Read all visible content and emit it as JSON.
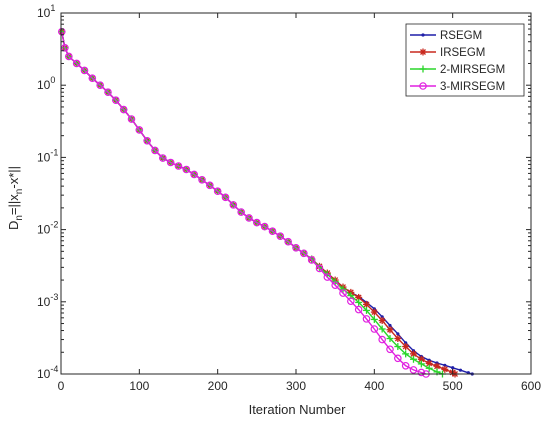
{
  "chart_data": {
    "type": "line",
    "title": "",
    "xlabel": "Iteration Number",
    "ylabel": "D_n=||x_n-x*||",
    "ylabel_parts": {
      "main": "D",
      "sub1": "n",
      "mid": "=||x",
      "sub2": "n",
      "tail": "-x*||"
    },
    "xlim": [
      0,
      600
    ],
    "ylim": [
      0.0001,
      10
    ],
    "yscale": "log",
    "grid": false,
    "legend_position": "top-right",
    "x_ticks": [
      0,
      100,
      200,
      300,
      400,
      500,
      600
    ],
    "x_tick_labels": [
      "0",
      "100",
      "200",
      "300",
      "400",
      "500",
      "600"
    ],
    "y_ticks": [
      0.0001,
      0.001,
      0.01,
      0.1,
      1,
      10
    ],
    "y_tick_labels": [
      {
        "base": "10",
        "exp": "-4"
      },
      {
        "base": "10",
        "exp": "-3"
      },
      {
        "base": "10",
        "exp": "-2"
      },
      {
        "base": "10",
        "exp": "-1"
      },
      {
        "base": "10",
        "exp": "0"
      },
      {
        "base": "10",
        "exp": "1"
      }
    ],
    "series": [
      {
        "name": "RSEGM",
        "color": "#1f1fa8",
        "marker": "dot",
        "x": [
          1,
          5,
          10,
          20,
          30,
          40,
          50,
          60,
          70,
          80,
          90,
          100,
          110,
          120,
          130,
          140,
          150,
          160,
          170,
          180,
          190,
          200,
          210,
          220,
          230,
          240,
          250,
          260,
          270,
          280,
          290,
          300,
          310,
          320,
          330,
          340,
          350,
          360,
          370,
          380,
          390,
          400,
          410,
          420,
          430,
          440,
          450,
          460,
          470,
          480,
          490,
          500,
          510,
          520,
          525
        ],
        "y": [
          5.5,
          3.3,
          2.5,
          2.0,
          1.6,
          1.25,
          1.0,
          0.8,
          0.62,
          0.46,
          0.34,
          0.24,
          0.17,
          0.125,
          0.098,
          0.085,
          0.076,
          0.068,
          0.058,
          0.049,
          0.041,
          0.034,
          0.028,
          0.022,
          0.0175,
          0.0145,
          0.0125,
          0.011,
          0.0095,
          0.0081,
          0.0068,
          0.0056,
          0.0047,
          0.0039,
          0.0031,
          0.0025,
          0.002,
          0.0016,
          0.00135,
          0.00118,
          0.00098,
          0.0008,
          0.00062,
          0.00047,
          0.00036,
          0.00027,
          0.00021,
          0.000175,
          0.000155,
          0.000142,
          0.000132,
          0.000122,
          0.000113,
          0.000104,
          0.0001
        ]
      },
      {
        "name": "IRSEGM",
        "color": "#c8281e",
        "marker": "star",
        "x": [
          1,
          5,
          10,
          20,
          30,
          40,
          50,
          60,
          70,
          80,
          90,
          100,
          110,
          120,
          130,
          140,
          150,
          160,
          170,
          180,
          190,
          200,
          210,
          220,
          230,
          240,
          250,
          260,
          270,
          280,
          290,
          300,
          310,
          320,
          330,
          340,
          350,
          360,
          370,
          380,
          390,
          400,
          410,
          420,
          430,
          440,
          450,
          460,
          470,
          480,
          490,
          500,
          503
        ],
        "y": [
          5.5,
          3.3,
          2.5,
          2.0,
          1.6,
          1.25,
          1.0,
          0.8,
          0.62,
          0.46,
          0.34,
          0.24,
          0.17,
          0.125,
          0.098,
          0.085,
          0.076,
          0.068,
          0.058,
          0.049,
          0.041,
          0.034,
          0.028,
          0.022,
          0.0175,
          0.0145,
          0.0125,
          0.011,
          0.0095,
          0.0081,
          0.0068,
          0.0056,
          0.0047,
          0.0039,
          0.0031,
          0.0025,
          0.002,
          0.0016,
          0.00135,
          0.00115,
          0.00092,
          0.00072,
          0.00055,
          0.00041,
          0.00031,
          0.00024,
          0.00019,
          0.00016,
          0.00014,
          0.000128,
          0.000116,
          0.000105,
          0.0001
        ]
      },
      {
        "name": "2-MIRSEGM",
        "color": "#2bd62b",
        "marker": "plus",
        "x": [
          1,
          5,
          10,
          20,
          30,
          40,
          50,
          60,
          70,
          80,
          90,
          100,
          110,
          120,
          130,
          140,
          150,
          160,
          170,
          180,
          190,
          200,
          210,
          220,
          230,
          240,
          250,
          260,
          270,
          280,
          290,
          300,
          310,
          320,
          330,
          340,
          350,
          360,
          370,
          380,
          390,
          400,
          410,
          420,
          430,
          440,
          450,
          460,
          470,
          480,
          487
        ],
        "y": [
          5.5,
          3.3,
          2.5,
          2.0,
          1.6,
          1.25,
          1.0,
          0.8,
          0.62,
          0.46,
          0.34,
          0.24,
          0.17,
          0.125,
          0.098,
          0.085,
          0.076,
          0.068,
          0.058,
          0.049,
          0.041,
          0.034,
          0.028,
          0.022,
          0.0175,
          0.0145,
          0.0125,
          0.011,
          0.0095,
          0.0081,
          0.0068,
          0.0056,
          0.0047,
          0.0039,
          0.003,
          0.0024,
          0.0019,
          0.0015,
          0.00122,
          0.00098,
          0.00076,
          0.00057,
          0.00042,
          0.00031,
          0.00024,
          0.00019,
          0.00016,
          0.000138,
          0.00012,
          0.000107,
          0.0001
        ]
      },
      {
        "name": "3-MIRSEGM",
        "color": "#e020e0",
        "marker": "circle",
        "x": [
          1,
          5,
          10,
          20,
          30,
          40,
          50,
          60,
          70,
          80,
          90,
          100,
          110,
          120,
          130,
          140,
          150,
          160,
          170,
          180,
          190,
          200,
          210,
          220,
          230,
          240,
          250,
          260,
          270,
          280,
          290,
          300,
          310,
          320,
          330,
          340,
          350,
          360,
          370,
          380,
          390,
          400,
          410,
          420,
          430,
          440,
          450,
          460,
          466
        ],
        "y": [
          5.5,
          3.3,
          2.5,
          2.0,
          1.6,
          1.25,
          1.0,
          0.8,
          0.62,
          0.46,
          0.34,
          0.24,
          0.17,
          0.125,
          0.098,
          0.085,
          0.076,
          0.068,
          0.058,
          0.049,
          0.041,
          0.034,
          0.028,
          0.022,
          0.0175,
          0.0145,
          0.0125,
          0.011,
          0.0095,
          0.0081,
          0.0068,
          0.0056,
          0.0047,
          0.0038,
          0.0029,
          0.0022,
          0.0017,
          0.00132,
          0.00102,
          0.00078,
          0.00058,
          0.00042,
          0.0003,
          0.00022,
          0.000165,
          0.00013,
          0.000114,
          0.000105,
          0.0001
        ]
      }
    ]
  }
}
